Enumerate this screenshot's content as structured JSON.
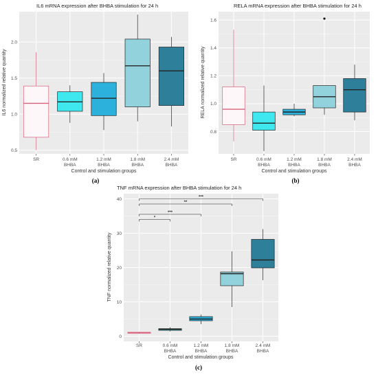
{
  "figure": {
    "panels": [
      {
        "label": "(a)"
      },
      {
        "label": "(b)"
      },
      {
        "label": "(c)"
      }
    ]
  },
  "colors": {
    "SR": "#fdf7f9",
    "0.6 mM BHBA": "#3ee8ee",
    "1.2 mM BHBA": "#2bb1db",
    "1.8 mM BHBA": "#91d2dc",
    "2.4 mM BHBA": "#2e7f9a",
    "SR_outline": "#d9607a",
    "panel_bg": "#ebebeb",
    "grid": "#ffffff"
  },
  "chart_data": [
    {
      "type": "box",
      "title": "IL6 mRNA expression after BHBA stimulation for 24 h",
      "xlabel": "Control and stimulation groups",
      "ylabel": "IL6 normalized relative quantity",
      "ylim": [
        0.45,
        2.42
      ],
      "yticks": [
        "0.5",
        "1.0",
        "1.5",
        "2.0"
      ],
      "categories": [
        "SR",
        "0.6 mM BHBA",
        "1.2 mM BHBA",
        "1.8 mM BHBA",
        "2.4 mM BHBA"
      ],
      "category_lines": [
        [
          "SR"
        ],
        [
          "0.6 mM",
          "BHBA"
        ],
        [
          "1.2 mM",
          "BHBA"
        ],
        [
          "1.8 mM",
          "BHBA"
        ],
        [
          "2.4 mM",
          "BHBA"
        ]
      ],
      "boxes": [
        {
          "min": 0.5,
          "q1": 0.68,
          "median": 1.15,
          "q3": 1.39,
          "max": 1.86,
          "outliers": []
        },
        {
          "min": 0.88,
          "q1": 1.04,
          "median": 1.17,
          "q3": 1.31,
          "max": 1.4,
          "outliers": []
        },
        {
          "min": 0.78,
          "q1": 0.98,
          "median": 1.22,
          "q3": 1.44,
          "max": 1.57,
          "outliers": []
        },
        {
          "min": 0.9,
          "q1": 1.1,
          "median": 1.67,
          "q3": 2.04,
          "max": 2.38,
          "outliers": []
        },
        {
          "min": 0.83,
          "q1": 1.12,
          "median": 1.6,
          "q3": 1.93,
          "max": 2.07,
          "outliers": []
        }
      ],
      "significance": []
    },
    {
      "type": "box",
      "title": "RELA mRNA expression after BHBA stimulation for 24 h",
      "xlabel": "Control and stimulation groups",
      "ylabel": "RELA normalized relative quantity",
      "ylim": [
        0.64,
        1.66
      ],
      "yticks": [
        "0.8",
        "1.0",
        "1.2",
        "1.4",
        "1.6"
      ],
      "categories": [
        "SR",
        "0.6 mM BHBA",
        "1.2 mM BHBA",
        "1.8 mM BHBA",
        "2.4 mM BHBA"
      ],
      "category_lines": [
        [
          "SR"
        ],
        [
          "0.6 mM",
          "BHBA"
        ],
        [
          "1.2 mM",
          "BHBA"
        ],
        [
          "1.8 mM",
          "BHBA"
        ],
        [
          "2.4 mM",
          "BHBA"
        ]
      ],
      "boxes": [
        {
          "min": 0.73,
          "q1": 0.85,
          "median": 0.96,
          "q3": 1.12,
          "max": 1.53,
          "outliers": []
        },
        {
          "min": 0.66,
          "q1": 0.81,
          "median": 0.86,
          "q3": 0.94,
          "max": 1.13,
          "outliers": []
        },
        {
          "min": 0.91,
          "q1": 0.92,
          "median": 0.94,
          "q3": 0.96,
          "max": 1.0,
          "outliers": []
        },
        {
          "min": 0.92,
          "q1": 0.97,
          "median": 1.05,
          "q3": 1.13,
          "max": 1.13,
          "outliers": [
            1.61
          ]
        },
        {
          "min": 0.88,
          "q1": 0.94,
          "median": 1.1,
          "q3": 1.18,
          "max": 1.28,
          "outliers": []
        }
      ],
      "significance": []
    },
    {
      "type": "box",
      "title": "TNF mRNA expression after BHBA stimulation for 24 h",
      "xlabel": "Control and stimulation groups",
      "ylabel": "TNF normalized relative quantity",
      "ylim": [
        -1.5,
        41.5
      ],
      "yticks": [
        "0",
        "10",
        "20",
        "30",
        "40"
      ],
      "categories": [
        "SR",
        "0.6 mM BHBA",
        "1.2 mM BHBA",
        "1.8 mM BHBA",
        "2.4 mM BHBA"
      ],
      "category_lines": [
        [
          "SR"
        ],
        [
          "0.6 mM",
          "BHBA"
        ],
        [
          "1.2 mM",
          "BHBA"
        ],
        [
          "1.8 mM",
          "BHBA"
        ],
        [
          "2.4 mM",
          "BHBA"
        ]
      ],
      "boxes": [
        {
          "min": 0.7,
          "q1": 0.85,
          "median": 1.0,
          "q3": 1.15,
          "max": 1.3,
          "outliers": []
        },
        {
          "min": 1.4,
          "q1": 1.7,
          "median": 2.0,
          "q3": 2.2,
          "max": 2.6,
          "outliers": []
        },
        {
          "min": 3.5,
          "q1": 4.5,
          "median": 5.0,
          "q3": 5.7,
          "max": 6.3,
          "outliers": []
        },
        {
          "min": 8.5,
          "q1": 14.7,
          "median": 18.2,
          "q3": 18.7,
          "max": 24.7,
          "outliers": []
        },
        {
          "min": 16.3,
          "q1": 19.9,
          "median": 22.2,
          "q3": 28.2,
          "max": 31.2,
          "outliers": []
        }
      ],
      "significance": [
        {
          "from": 0,
          "to": 1,
          "y": 34,
          "label": "*"
        },
        {
          "from": 0,
          "to": 2,
          "y": 35.5,
          "label": "***"
        },
        {
          "from": 0,
          "to": 3,
          "y": 38.5,
          "label": "**"
        },
        {
          "from": 0,
          "to": 4,
          "y": 40,
          "label": "***"
        }
      ]
    }
  ]
}
